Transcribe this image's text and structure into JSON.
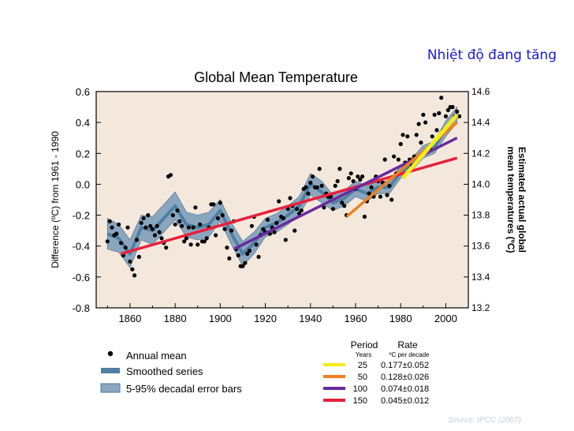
{
  "slide": {
    "title": "Nhiệt độ đang tăng",
    "source": "Source: IPCC (2007)"
  },
  "chart_data": {
    "type": "line",
    "title": "Global Mean Temperature",
    "ylabel": "Difference (ºC) from 1961 - 1990",
    "y2label_line1": "Estimated actual global",
    "y2label_line2": "mean temperatures (ºC)",
    "xlim": [
      1845,
      2010
    ],
    "ylim": [
      -0.8,
      0.6
    ],
    "y2lim": [
      13.2,
      14.6
    ],
    "x_ticks": [
      1860,
      1880,
      1900,
      1920,
      1940,
      1960,
      1980,
      2000
    ],
    "y_ticks": [
      "0.6",
      "0.4",
      "0.2",
      "0.0",
      "-0.2",
      "-0.4",
      "-0.6",
      "-0.8"
    ],
    "y2_ticks": [
      "14.6",
      "14.4",
      "14.2",
      "14.0",
      "13.8",
      "13.6",
      "13.4",
      "13.2"
    ],
    "colors": {
      "plot_bg": "#f4e8dc",
      "band": "#8aa6be",
      "smooth": "#4f7fa2",
      "dots": "#000000",
      "trend25": "#f4ec1c",
      "trend50": "#f08020",
      "trend100": "#6a2aa0",
      "trend150": "#e8203c"
    },
    "annual_mean": {
      "x": [
        1850,
        1851,
        1852,
        1853,
        1854,
        1855,
        1856,
        1857,
        1858,
        1859,
        1860,
        1861,
        1862,
        1863,
        1864,
        1865,
        1866,
        1867,
        1868,
        1869,
        1870,
        1871,
        1872,
        1873,
        1874,
        1875,
        1876,
        1877,
        1878,
        1879,
        1880,
        1881,
        1882,
        1883,
        1884,
        1885,
        1886,
        1887,
        1888,
        1889,
        1890,
        1891,
        1892,
        1893,
        1894,
        1895,
        1896,
        1897,
        1898,
        1899,
        1900,
        1901,
        1902,
        1903,
        1904,
        1905,
        1906,
        1907,
        1908,
        1909,
        1910,
        1911,
        1912,
        1913,
        1914,
        1915,
        1916,
        1917,
        1918,
        1919,
        1920,
        1921,
        1922,
        1923,
        1924,
        1925,
        1926,
        1927,
        1928,
        1929,
        1930,
        1931,
        1932,
        1933,
        1934,
        1935,
        1936,
        1937,
        1938,
        1939,
        1940,
        1941,
        1942,
        1943,
        1944,
        1945,
        1946,
        1947,
        1948,
        1949,
        1950,
        1951,
        1952,
        1953,
        1954,
        1955,
        1956,
        1957,
        1958,
        1959,
        1960,
        1961,
        1962,
        1963,
        1964,
        1965,
        1966,
        1967,
        1968,
        1969,
        1970,
        1971,
        1972,
        1973,
        1974,
        1975,
        1976,
        1977,
        1978,
        1979,
        1980,
        1981,
        1982,
        1983,
        1984,
        1985,
        1986,
        1987,
        1988,
        1989,
        1990,
        1991,
        1992,
        1993,
        1994,
        1995,
        1996,
        1997,
        1998,
        1999,
        2000,
        2001,
        2002,
        2003,
        2004,
        2005,
        2006
      ],
      "y": [
        -0.37,
        -0.24,
        -0.28,
        -0.33,
        -0.32,
        -0.26,
        -0.38,
        -0.46,
        -0.41,
        -0.28,
        -0.5,
        -0.55,
        -0.59,
        -0.36,
        -0.47,
        -0.25,
        -0.22,
        -0.28,
        -0.2,
        -0.27,
        -0.29,
        -0.33,
        -0.27,
        -0.31,
        -0.35,
        -0.38,
        -0.41,
        0.05,
        0.06,
        -0.2,
        -0.26,
        -0.17,
        -0.24,
        -0.27,
        -0.37,
        -0.35,
        -0.28,
        -0.39,
        -0.28,
        -0.15,
        -0.39,
        -0.26,
        -0.37,
        -0.37,
        -0.35,
        -0.28,
        -0.13,
        -0.13,
        -0.33,
        -0.22,
        -0.12,
        -0.2,
        -0.29,
        -0.41,
        -0.48,
        -0.3,
        -0.24,
        -0.42,
        -0.46,
        -0.53,
        -0.53,
        -0.51,
        -0.45,
        -0.43,
        -0.27,
        -0.21,
        -0.39,
        -0.47,
        -0.33,
        -0.29,
        -0.31,
        -0.23,
        -0.32,
        -0.28,
        -0.31,
        -0.25,
        -0.11,
        -0.21,
        -0.22,
        -0.36,
        -0.16,
        -0.09,
        -0.14,
        -0.3,
        -0.16,
        -0.19,
        -0.17,
        -0.03,
        -0.02,
        -0.06,
        0.01,
        0.05,
        -0.02,
        -0.02,
        0.1,
        -0.01,
        -0.15,
        -0.06,
        -0.08,
        -0.08,
        -0.16,
        -0.01,
        0.02,
        0.1,
        -0.12,
        -0.14,
        -0.2,
        0.04,
        0.07,
        0.02,
        -0.03,
        0.05,
        0.03,
        0.05,
        -0.21,
        -0.11,
        -0.06,
        -0.02,
        -0.08,
        0.05,
        0.02,
        -0.08,
        0.01,
        0.16,
        -0.07,
        -0.01,
        -0.1,
        0.18,
        0.07,
        0.16,
        0.26,
        0.32,
        0.14,
        0.31,
        0.16,
        0.12,
        0.18,
        0.32,
        0.39,
        0.27,
        0.45,
        0.4,
        0.22,
        0.23,
        0.31,
        0.45,
        0.35,
        0.46,
        0.56,
        0.35,
        0.44,
        0.48,
        0.5,
        0.5,
        0.44,
        0.47,
        0.44
      ]
    },
    "smoothed_series": {
      "x": [
        1850,
        1855,
        1860,
        1865,
        1870,
        1875,
        1880,
        1885,
        1890,
        1895,
        1900,
        1905,
        1910,
        1915,
        1920,
        1925,
        1930,
        1935,
        1940,
        1945,
        1950,
        1955,
        1960,
        1965,
        1970,
        1975,
        1980,
        1985,
        1990,
        1995,
        2000,
        2005
      ],
      "y": [
        -0.32,
        -0.35,
        -0.45,
        -0.28,
        -0.3,
        -0.22,
        -0.14,
        -0.26,
        -0.28,
        -0.26,
        -0.17,
        -0.32,
        -0.45,
        -0.38,
        -0.28,
        -0.25,
        -0.2,
        -0.14,
        0.0,
        -0.05,
        -0.12,
        -0.09,
        -0.03,
        -0.06,
        -0.02,
        -0.02,
        0.08,
        0.13,
        0.21,
        0.24,
        0.36,
        0.45
      ],
      "band_half_width": [
        0.1,
        0.09,
        0.09,
        0.08,
        0.09,
        0.09,
        0.09,
        0.08,
        0.08,
        0.08,
        0.07,
        0.07,
        0.08,
        0.07,
        0.06,
        0.06,
        0.06,
        0.06,
        0.07,
        0.07,
        0.05,
        0.05,
        0.05,
        0.05,
        0.04,
        0.04,
        0.04,
        0.04,
        0.04,
        0.04,
        0.05,
        0.05
      ]
    },
    "trends": [
      {
        "period": "25",
        "rate": "0.177±0.052",
        "x": [
          1981,
          2005
        ],
        "y": [
          0.04,
          0.45
        ]
      },
      {
        "period": "50",
        "rate": "0.128±0.026",
        "x": [
          1956,
          2005
        ],
        "y": [
          -0.21,
          0.4
        ]
      },
      {
        "period": "100",
        "rate": "0.074±0.018",
        "x": [
          1906,
          2005
        ],
        "y": [
          -0.42,
          0.3
        ]
      },
      {
        "period": "150",
        "rate": "0.045±0.012",
        "x": [
          1856,
          2005
        ],
        "y": [
          -0.45,
          0.17
        ]
      }
    ],
    "legend": {
      "items": [
        "Annual mean",
        "Smoothed series",
        "5-95% decadal error bars"
      ],
      "period_header": "Period",
      "period_unit": "Years",
      "rate_header": "Rate",
      "rate_unit": "ºC  per decade"
    }
  }
}
